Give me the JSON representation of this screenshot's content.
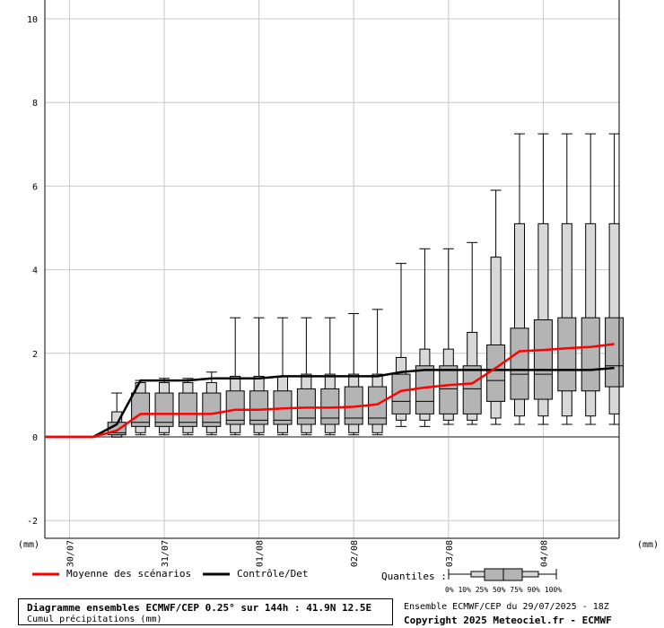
{
  "chart_data": {
    "type": "box",
    "y_unit_left": "(mm)",
    "y_unit_right": "(mm)",
    "ylim": [
      -2.4,
      10.4
    ],
    "yticks": [
      -2,
      0,
      2,
      4,
      6,
      8,
      10
    ],
    "date_ticks": [
      "30/07",
      "31/07",
      "01/08",
      "02/08",
      "03/08",
      "04/08"
    ],
    "lead_hours": [
      0,
      6,
      12,
      18,
      24,
      30,
      36,
      42,
      48,
      54,
      60,
      66,
      72,
      78,
      84,
      90,
      96,
      102,
      108,
      114,
      120,
      126,
      132,
      138,
      144
    ],
    "quantiles": [
      null,
      null,
      null,
      [
        0.0,
        0.0,
        0.05,
        0.1,
        0.35,
        0.6,
        1.05
      ],
      [
        0.05,
        0.1,
        0.25,
        0.35,
        1.05,
        1.3,
        1.35
      ],
      [
        0.05,
        0.1,
        0.25,
        0.35,
        1.05,
        1.3,
        1.4
      ],
      [
        0.05,
        0.1,
        0.25,
        0.35,
        1.05,
        1.3,
        1.4
      ],
      [
        0.05,
        0.1,
        0.25,
        0.35,
        1.05,
        1.3,
        1.55
      ],
      [
        0.05,
        0.1,
        0.3,
        0.4,
        1.1,
        1.45,
        2.85
      ],
      [
        0.05,
        0.1,
        0.3,
        0.4,
        1.1,
        1.45,
        2.85
      ],
      [
        0.05,
        0.1,
        0.3,
        0.4,
        1.1,
        1.45,
        2.85
      ],
      [
        0.05,
        0.1,
        0.3,
        0.45,
        1.15,
        1.5,
        2.85
      ],
      [
        0.05,
        0.1,
        0.3,
        0.45,
        1.15,
        1.5,
        2.85
      ],
      [
        0.05,
        0.1,
        0.3,
        0.45,
        1.2,
        1.5,
        2.95
      ],
      [
        0.05,
        0.1,
        0.3,
        0.45,
        1.2,
        1.5,
        3.05
      ],
      [
        0.25,
        0.4,
        0.55,
        0.85,
        1.5,
        1.9,
        4.15
      ],
      [
        0.25,
        0.4,
        0.55,
        0.85,
        1.7,
        2.1,
        4.5
      ],
      [
        0.3,
        0.4,
        0.55,
        1.15,
        1.7,
        2.1,
        4.5
      ],
      [
        0.3,
        0.4,
        0.55,
        1.15,
        1.7,
        2.5,
        4.65
      ],
      [
        0.3,
        0.45,
        0.85,
        1.35,
        2.2,
        4.3,
        5.9
      ],
      [
        0.3,
        0.5,
        0.9,
        1.5,
        2.6,
        5.1,
        7.25
      ],
      [
        0.3,
        0.5,
        0.9,
        1.5,
        2.8,
        5.1,
        7.25
      ],
      [
        0.3,
        0.5,
        1.1,
        1.6,
        2.85,
        5.1,
        7.25
      ],
      [
        0.3,
        0.5,
        1.1,
        1.6,
        2.85,
        5.1,
        7.25
      ],
      [
        0.3,
        0.55,
        1.2,
        1.7,
        2.85,
        5.1,
        7.25
      ]
    ],
    "mean": [
      0,
      0,
      0,
      0.15,
      0.55,
      0.55,
      0.55,
      0.55,
      0.65,
      0.65,
      0.68,
      0.7,
      0.7,
      0.72,
      0.78,
      1.1,
      1.18,
      1.24,
      1.28,
      1.65,
      2.05,
      2.08,
      2.12,
      2.15,
      2.22
    ],
    "control": [
      0,
      0,
      0,
      0.3,
      1.35,
      1.35,
      1.35,
      1.4,
      1.4,
      1.4,
      1.45,
      1.45,
      1.45,
      1.45,
      1.45,
      1.55,
      1.6,
      1.6,
      1.6,
      1.6,
      1.6,
      1.6,
      1.6,
      1.6,
      1.65
    ],
    "series": [
      {
        "name": "Moyenne des scénarios",
        "color": "#ff0000"
      },
      {
        "name": "Contrôle/Det",
        "color": "#000000"
      }
    ],
    "grid": true
  },
  "legend": {
    "mean_label": "Moyenne des scénarios",
    "control_label": "Contrôle/Det",
    "quantiles_label": "Quantiles :",
    "quantile_ticks": "0%  10% 25% 50% 75% 90% 100%"
  },
  "caption": {
    "title": "Diagramme ensembles ECMWF/CEP 0.25° sur 144h : 41.9N 12.5E",
    "subtitle": "Cumul précipitations (mm)"
  },
  "footer": {
    "run": "Ensemble ECMWF/CEP du 29/07/2025 - 18Z",
    "copyright": "Copyright 2025 Meteociel.fr - ECMWF"
  }
}
